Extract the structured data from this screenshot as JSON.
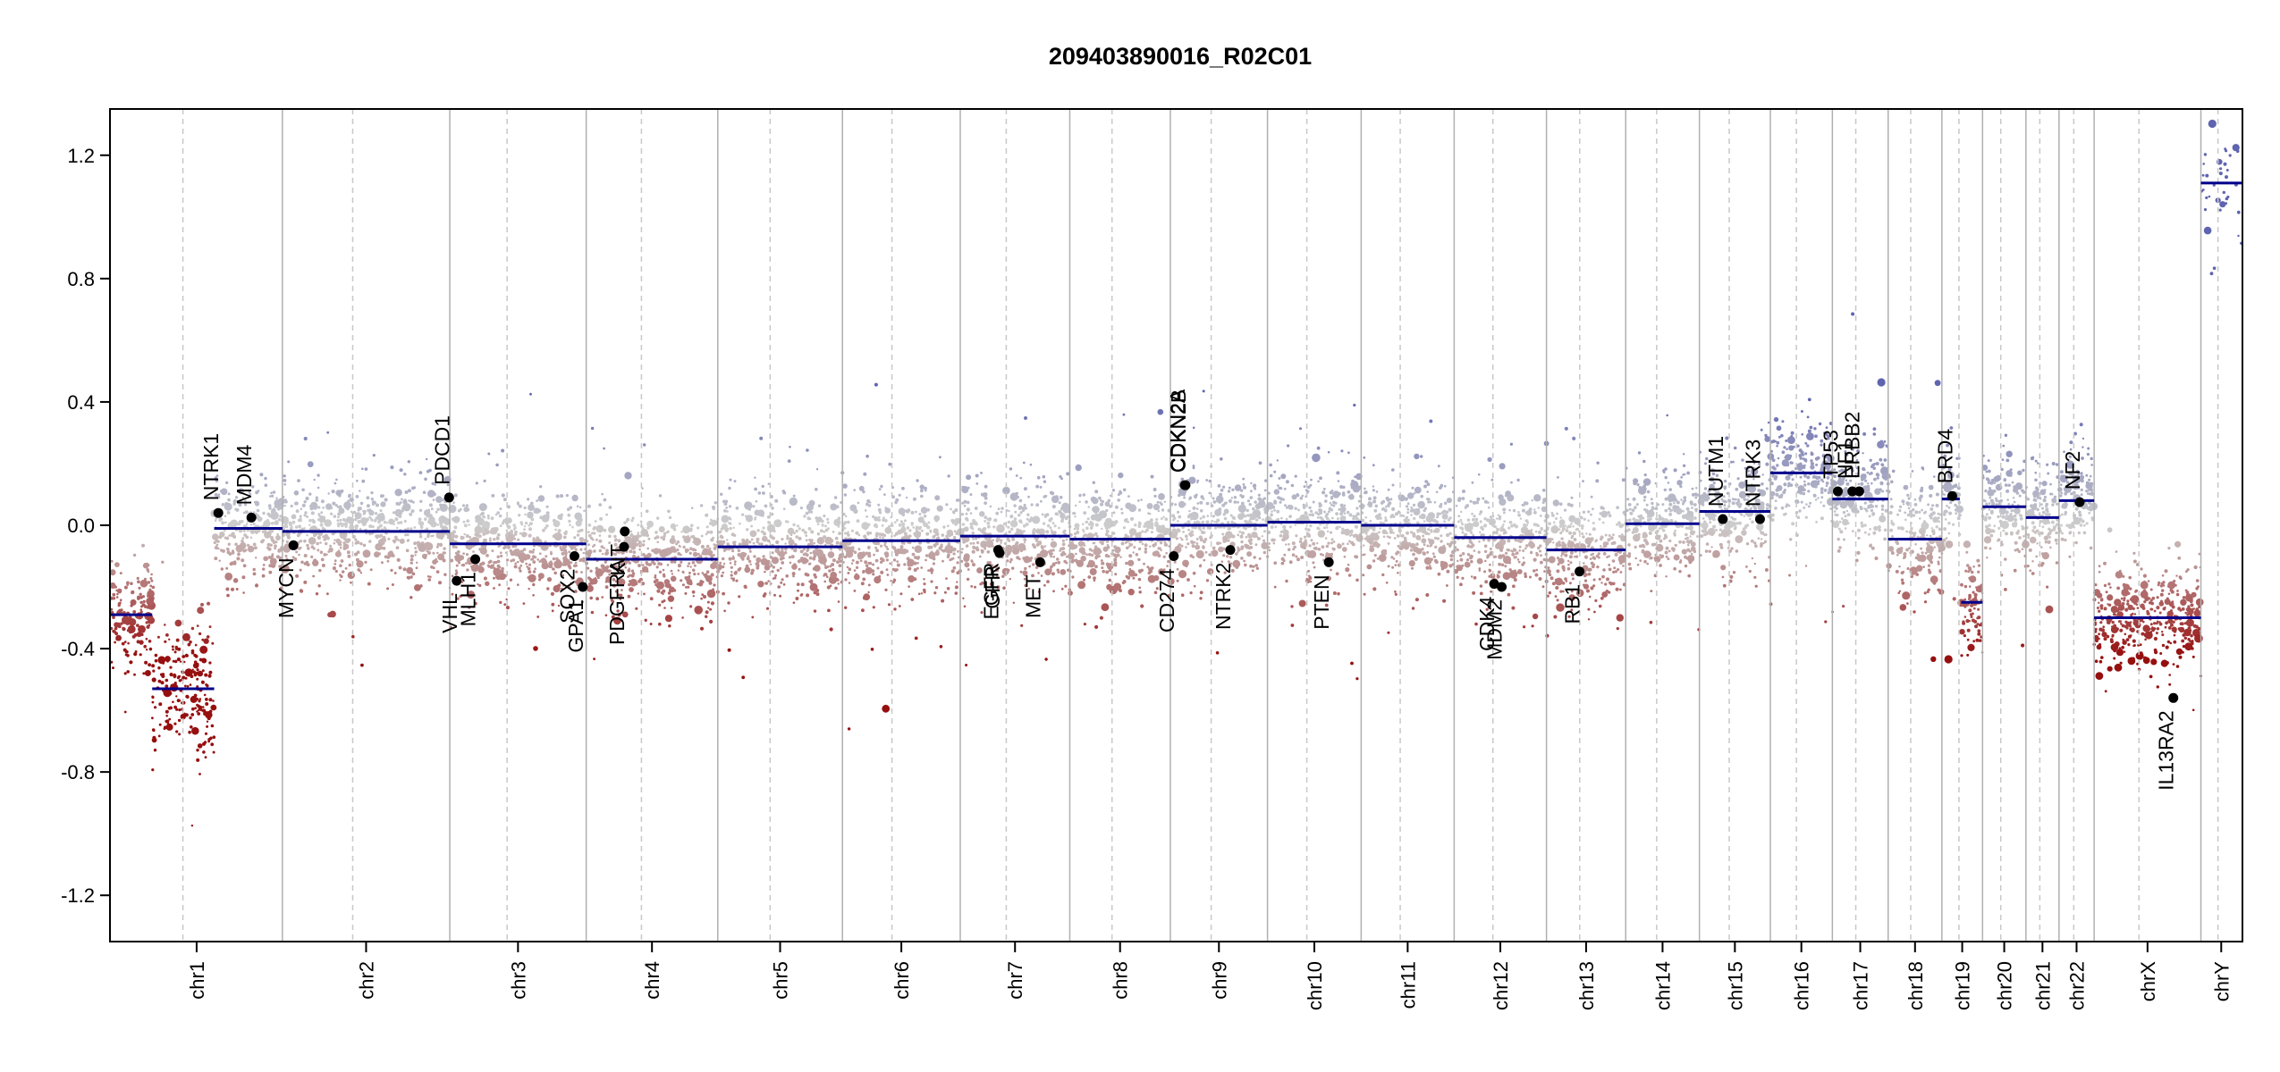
{
  "chart_data": {
    "type": "scatter",
    "title": "209403890016_R02C01",
    "xlabel": "",
    "ylabel": "",
    "ylim": [
      -1.35,
      1.35
    ],
    "y_ticks": [
      {
        "value": 1.2,
        "label": "1.2"
      },
      {
        "value": 0.8,
        "label": "0.8"
      },
      {
        "value": 0.4,
        "label": "0.4"
      },
      {
        "value": 0.0,
        "label": "0.0"
      },
      {
        "value": -0.4,
        "label": "-0.4"
      },
      {
        "value": -0.8,
        "label": "-0.8"
      },
      {
        "value": -1.2,
        "label": "-1.2"
      }
    ],
    "chromosomes": [
      {
        "name": "chr1",
        "len": 249
      },
      {
        "name": "chr2",
        "len": 243
      },
      {
        "name": "chr3",
        "len": 198
      },
      {
        "name": "chr4",
        "len": 191
      },
      {
        "name": "chr5",
        "len": 181
      },
      {
        "name": "chr6",
        "len": 171
      },
      {
        "name": "chr7",
        "len": 159
      },
      {
        "name": "chr8",
        "len": 146
      },
      {
        "name": "chr9",
        "len": 141
      },
      {
        "name": "chr10",
        "len": 136
      },
      {
        "name": "chr11",
        "len": 135
      },
      {
        "name": "chr12",
        "len": 134
      },
      {
        "name": "chr13",
        "len": 115
      },
      {
        "name": "chr14",
        "len": 107
      },
      {
        "name": "chr15",
        "len": 103
      },
      {
        "name": "chr16",
        "len": 90
      },
      {
        "name": "chr17",
        "len": 81
      },
      {
        "name": "chr18",
        "len": 78
      },
      {
        "name": "chr19",
        "len": 59
      },
      {
        "name": "chr20",
        "len": 63
      },
      {
        "name": "chr21",
        "len": 48
      },
      {
        "name": "chr22",
        "len": 51
      },
      {
        "name": "chrX",
        "len": 155
      },
      {
        "name": "chrY",
        "len": 59
      }
    ],
    "segments": [
      {
        "chr": "chr1",
        "start": 0,
        "end": 60,
        "value": -0.29
      },
      {
        "chr": "chr1",
        "start": 60,
        "end": 150,
        "value": -0.53
      },
      {
        "chr": "chr1",
        "start": 150,
        "end": 249,
        "value": -0.01
      },
      {
        "chr": "chr2",
        "start": 0,
        "end": 243,
        "value": -0.02
      },
      {
        "chr": "chr3",
        "start": 0,
        "end": 198,
        "value": -0.06
      },
      {
        "chr": "chr4",
        "start": 0,
        "end": 191,
        "value": -0.11
      },
      {
        "chr": "chr5",
        "start": 0,
        "end": 181,
        "value": -0.07
      },
      {
        "chr": "chr6",
        "start": 0,
        "end": 171,
        "value": -0.05
      },
      {
        "chr": "chr7",
        "start": 0,
        "end": 159,
        "value": -0.035
      },
      {
        "chr": "chr8",
        "start": 0,
        "end": 146,
        "value": -0.045
      },
      {
        "chr": "chr9",
        "start": 0,
        "end": 141,
        "value": 0.0
      },
      {
        "chr": "chr10",
        "start": 0,
        "end": 136,
        "value": 0.01
      },
      {
        "chr": "chr11",
        "start": 0,
        "end": 135,
        "value": 0.0
      },
      {
        "chr": "chr12",
        "start": 0,
        "end": 134,
        "value": -0.04
      },
      {
        "chr": "chr13",
        "start": 0,
        "end": 115,
        "value": -0.08
      },
      {
        "chr": "chr14",
        "start": 0,
        "end": 107,
        "value": 0.005
      },
      {
        "chr": "chr15",
        "start": 0,
        "end": 103,
        "value": 0.045
      },
      {
        "chr": "chr16",
        "start": 0,
        "end": 90,
        "value": 0.17
      },
      {
        "chr": "chr17",
        "start": 0,
        "end": 81,
        "value": 0.085
      },
      {
        "chr": "chr18",
        "start": 0,
        "end": 78,
        "value": -0.045
      },
      {
        "chr": "chr19",
        "start": 0,
        "end": 26,
        "value": 0.085
      },
      {
        "chr": "chr19",
        "start": 28,
        "end": 59,
        "value": -0.25
      },
      {
        "chr": "chr20",
        "start": 0,
        "end": 63,
        "value": 0.06
      },
      {
        "chr": "chr21",
        "start": 0,
        "end": 48,
        "value": 0.025
      },
      {
        "chr": "chr22",
        "start": 0,
        "end": 51,
        "value": 0.08
      },
      {
        "chr": "chrX",
        "start": 0,
        "end": 155,
        "value": -0.3
      },
      {
        "chr": "chrY",
        "start": 0,
        "end": 59,
        "value": 1.11
      }
    ],
    "genes": [
      {
        "name": "NTRK1",
        "chr": "chr1",
        "pos": 156,
        "value": 0.04,
        "label_side": "above"
      },
      {
        "name": "MDM4",
        "chr": "chr1",
        "pos": 204,
        "value": 0.025,
        "label_side": "above"
      },
      {
        "name": "MYCN",
        "chr": "chr2",
        "pos": 16,
        "value": -0.065,
        "label_side": "below"
      },
      {
        "name": "PDCD1",
        "chr": "chr2",
        "pos": 242,
        "value": 0.09,
        "label_side": "above"
      },
      {
        "name": "VHL",
        "chr": "chr3",
        "pos": 10,
        "value": -0.18,
        "label_side": "below"
      },
      {
        "name": "MLH1",
        "chr": "chr3",
        "pos": 37,
        "value": -0.11,
        "label_side": "below"
      },
      {
        "name": "SOX2",
        "chr": "chr3",
        "pos": 181,
        "value": -0.1,
        "label_side": "below"
      },
      {
        "name": "GPA1",
        "chr": "chr3",
        "pos": 193,
        "value": -0.2,
        "label_side": "below"
      },
      {
        "name": "PDGFRA",
        "chr": "chr4",
        "pos": 55,
        "value": -0.07,
        "label_side": "below"
      },
      {
        "name": "KIT",
        "chr": "chr4",
        "pos": 56,
        "value": -0.02,
        "label_side": "below"
      },
      {
        "name": "EGFR",
        "chr": "chr7",
        "pos": 55,
        "value": -0.08,
        "label_side": "below"
      },
      {
        "name": "GFR",
        "chr": "chr7",
        "pos": 57,
        "value": -0.09,
        "label_side": "below"
      },
      {
        "name": "MET",
        "chr": "chr7",
        "pos": 116,
        "value": -0.12,
        "label_side": "below"
      },
      {
        "name": "CD274",
        "chr": "chr9",
        "pos": 5,
        "value": -0.1,
        "label_side": "below"
      },
      {
        "name": "CDKN2A",
        "chr": "chr9",
        "pos": 21,
        "value": 0.13,
        "label_side": "above"
      },
      {
        "name": "CDKN2B",
        "chr": "chr9",
        "pos": 22,
        "value": 0.13,
        "label_side": "above"
      },
      {
        "name": "NTRK2",
        "chr": "chr9",
        "pos": 87,
        "value": -0.08,
        "label_side": "below"
      },
      {
        "name": "PTEN",
        "chr": "chr10",
        "pos": 89,
        "value": -0.12,
        "label_side": "below"
      },
      {
        "name": "CDK4",
        "chr": "chr12",
        "pos": 58,
        "value": -0.19,
        "label_side": "below"
      },
      {
        "name": "MDM2",
        "chr": "chr12",
        "pos": 69,
        "value": -0.2,
        "label_side": "below"
      },
      {
        "name": "RB1",
        "chr": "chr13",
        "pos": 48,
        "value": -0.15,
        "label_side": "below"
      },
      {
        "name": "NUTM1",
        "chr": "chr15",
        "pos": 34,
        "value": 0.02,
        "label_side": "above"
      },
      {
        "name": "NTRK3",
        "chr": "chr15",
        "pos": 88,
        "value": 0.02,
        "label_side": "above"
      },
      {
        "name": "TP53",
        "chr": "chr17",
        "pos": 8,
        "value": 0.11,
        "label_side": "above"
      },
      {
        "name": "NF1",
        "chr": "chr17",
        "pos": 29,
        "value": 0.11,
        "label_side": "above"
      },
      {
        "name": "ERBB2",
        "chr": "chr17",
        "pos": 39,
        "value": 0.11,
        "label_side": "above"
      },
      {
        "name": "BRD4",
        "chr": "chr19",
        "pos": 15,
        "value": 0.095,
        "label_side": "above"
      },
      {
        "name": "NF2",
        "chr": "chr22",
        "pos": 30,
        "value": 0.075,
        "label_side": "above"
      },
      {
        "name": "IL13RA2",
        "chr": "chrX",
        "pos": 115,
        "value": -0.56,
        "label_side": "below"
      }
    ],
    "grid": false,
    "legend": "none"
  }
}
